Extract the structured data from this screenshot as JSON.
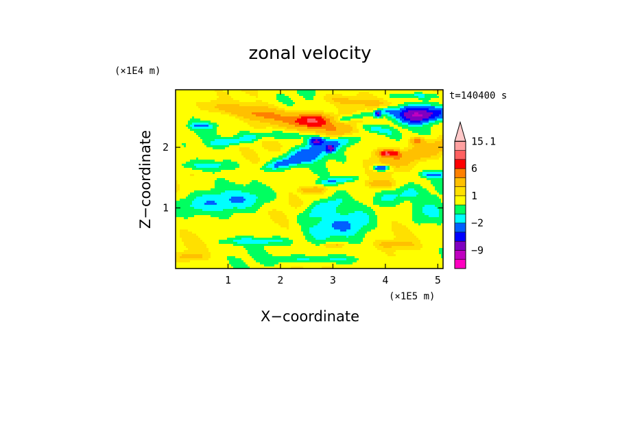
{
  "chart_data": {
    "type": "heatmap",
    "title": "zonal velocity",
    "xlabel": "X−coordinate",
    "ylabel": "Z−coordinate",
    "x_scale_label": "(×1E5 m)",
    "y_scale_label": "(×1E4 m)",
    "time_label": "t=140400 s",
    "xlim": [
      0,
      5.1
    ],
    "ylim": [
      0,
      2.95
    ],
    "x_ticks": [
      {
        "value": 1,
        "label": "1"
      },
      {
        "value": 2,
        "label": "2"
      },
      {
        "value": 3,
        "label": "3"
      },
      {
        "value": 4,
        "label": "4"
      },
      {
        "value": 5,
        "label": "5"
      }
    ],
    "y_ticks": [
      {
        "value": 1,
        "label": "1"
      },
      {
        "value": 2,
        "label": "2"
      }
    ],
    "colorbar": {
      "levels": [
        -15,
        -12,
        -9,
        -6,
        -4,
        -2,
        -1,
        0,
        1,
        2,
        4,
        6,
        9,
        12,
        15.1
      ],
      "colors": [
        "#ff00c0",
        "#c000c0",
        "#8000c0",
        "#0000ff",
        "#0060ff",
        "#00ffff",
        "#00ff60",
        "#ffff00",
        "#ffe000",
        "#ffc000",
        "#ff8000",
        "#ff0000",
        "#ff6060",
        "#ffa0a0",
        "#ffc8c8"
      ],
      "labels": [
        {
          "value": 15.1,
          "text": "15.1"
        },
        {
          "value": 6,
          "text": "6"
        },
        {
          "value": 1,
          "text": "1"
        },
        {
          "value": -2,
          "text": "−2"
        },
        {
          "value": -9,
          "text": "−9"
        }
      ]
    },
    "field_features": [
      {
        "type": "band",
        "center": [
          2.5,
          2.4
        ],
        "length": 2.2,
        "width": 0.28,
        "angle_deg": -10,
        "value": 3.5
      },
      {
        "type": "band",
        "center": [
          4.6,
          1.9
        ],
        "length": 1.6,
        "width": 0.26,
        "angle_deg": 15,
        "value": 3
      },
      {
        "type": "band",
        "center": [
          1.2,
          2.6
        ],
        "length": 1.4,
        "width": 0.2,
        "angle_deg": -8,
        "value": 2.2
      },
      {
        "type": "band",
        "center": [
          3.5,
          2.75
        ],
        "length": 1.5,
        "width": 0.16,
        "angle_deg": -5,
        "value": 1.5
      },
      {
        "type": "band",
        "center": [
          2.8,
          2.0
        ],
        "length": 1.8,
        "width": 0.22,
        "angle_deg": 15,
        "value": -2.8
      },
      {
        "type": "band",
        "center": [
          4.9,
          2.55
        ],
        "length": 1.0,
        "width": 0.2,
        "angle_deg": 10,
        "value": -3.5
      },
      {
        "type": "band",
        "center": [
          2.2,
          1.75
        ],
        "length": 1.2,
        "width": 0.14,
        "angle_deg": 10,
        "value": -2.3
      },
      {
        "type": "band",
        "center": [
          3.1,
          1.45
        ],
        "length": 0.8,
        "width": 0.1,
        "angle_deg": 5,
        "value": -2.2
      },
      {
        "type": "band",
        "center": [
          1.1,
          2.1
        ],
        "length": 0.9,
        "width": 0.13,
        "angle_deg": 5,
        "value": -2.1
      },
      {
        "type": "band",
        "center": [
          0.5,
          2.35
        ],
        "length": 0.5,
        "width": 0.1,
        "angle_deg": 0,
        "value": -2.2
      },
      {
        "type": "band",
        "center": [
          4.0,
          2.6
        ],
        "length": 0.35,
        "width": 0.14,
        "angle_deg": 0,
        "value": -2.5
      },
      {
        "type": "band",
        "center": [
          4.9,
          1.55
        ],
        "length": 0.5,
        "width": 0.1,
        "angle_deg": 0,
        "value": -2.3
      },
      {
        "type": "band",
        "center": [
          3.4,
          2.5
        ],
        "length": 0.7,
        "width": 0.1,
        "angle_deg": 10,
        "value": -2.1
      },
      {
        "type": "band",
        "center": [
          0.9,
          1.1
        ],
        "length": 2.0,
        "width": 0.35,
        "angle_deg": 5,
        "value": -2
      },
      {
        "type": "band",
        "center": [
          3.1,
          0.7
        ],
        "length": 1.3,
        "width": 0.45,
        "angle_deg": 10,
        "value": -2
      },
      {
        "type": "band",
        "center": [
          2.8,
          1.0
        ],
        "length": 1.0,
        "width": 0.25,
        "angle_deg": 20,
        "value": -1.9
      },
      {
        "type": "band",
        "center": [
          1.5,
          0.45
        ],
        "length": 1.4,
        "width": 0.12,
        "angle_deg": 0,
        "value": -1.8
      },
      {
        "type": "band",
        "center": [
          4.2,
          1.2
        ],
        "length": 0.9,
        "width": 0.25,
        "angle_deg": 10,
        "value": -1.8
      },
      {
        "type": "band",
        "center": [
          4.8,
          0.9
        ],
        "length": 0.6,
        "width": 0.4,
        "angle_deg": 0,
        "value": -1.7
      },
      {
        "type": "band",
        "center": [
          2.7,
          0.15
        ],
        "length": 1.6,
        "width": 0.14,
        "angle_deg": 0,
        "value": -1.8
      },
      {
        "type": "band",
        "center": [
          1.9,
          2.2
        ],
        "length": 1.3,
        "width": 0.14,
        "angle_deg": 0,
        "value": -1.7
      },
      {
        "type": "band",
        "center": [
          0.6,
          1.7
        ],
        "length": 1.1,
        "width": 0.16,
        "angle_deg": 0,
        "value": -1.8
      },
      {
        "type": "band",
        "center": [
          3.8,
          2.3
        ],
        "length": 0.8,
        "width": 0.13,
        "angle_deg": -10,
        "value": -1.8
      },
      {
        "type": "band",
        "center": [
          4.6,
          2.85
        ],
        "length": 1.0,
        "width": 0.08,
        "angle_deg": 0,
        "value": -1.6
      },
      {
        "type": "band",
        "center": [
          2.6,
          1.3
        ],
        "length": 0.5,
        "width": 0.1,
        "angle_deg": 0,
        "value": 2.6
      },
      {
        "type": "band",
        "center": [
          3.9,
          1.4
        ],
        "length": 0.5,
        "width": 0.1,
        "angle_deg": 0,
        "value": 2.2
      },
      {
        "type": "band",
        "center": [
          4.2,
          0.4
        ],
        "length": 0.7,
        "width": 0.12,
        "angle_deg": 0,
        "value": 1.8
      },
      {
        "type": "band",
        "center": [
          3.0,
          0.38
        ],
        "length": 0.4,
        "width": 0.08,
        "angle_deg": 0,
        "value": 2.1
      },
      {
        "type": "band",
        "center": [
          4.1,
          1.9
        ],
        "length": 0.35,
        "width": 0.1,
        "angle_deg": 0,
        "value": 4.0
      },
      {
        "type": "band",
        "center": [
          0.3,
          0.2
        ],
        "length": 0.5,
        "width": 0.12,
        "angle_deg": 0,
        "value": 1.8
      },
      {
        "type": "blob",
        "center": [
          2.6,
          2.45
        ],
        "rx": 0.3,
        "ry": 0.1,
        "value": 6.6
      },
      {
        "type": "blob",
        "center": [
          4.55,
          2.55
        ],
        "rx": 0.35,
        "ry": 0.12,
        "value": -7.3
      },
      {
        "type": "blob",
        "center": [
          2.68,
          2.1
        ],
        "rx": 0.14,
        "ry": 0.06,
        "value": -6.8
      },
      {
        "type": "blob",
        "center": [
          2.95,
          1.98
        ],
        "rx": 0.08,
        "ry": 0.05,
        "value": -6.6
      },
      {
        "type": "blob",
        "center": [
          3.92,
          1.66
        ],
        "rx": 0.16,
        "ry": 0.05,
        "value": -6.6
      },
      {
        "type": "blob",
        "center": [
          3.85,
          2.55
        ],
        "rx": 0.06,
        "ry": 0.05,
        "value": -6.3
      },
      {
        "type": "blob",
        "center": [
          4.0,
          1.9
        ],
        "rx": 0.18,
        "ry": 0.06,
        "value": 4.6
      },
      {
        "type": "blob",
        "center": [
          4.6,
          2.1
        ],
        "rx": 0.14,
        "ry": 0.06,
        "value": 4.3
      }
    ]
  }
}
